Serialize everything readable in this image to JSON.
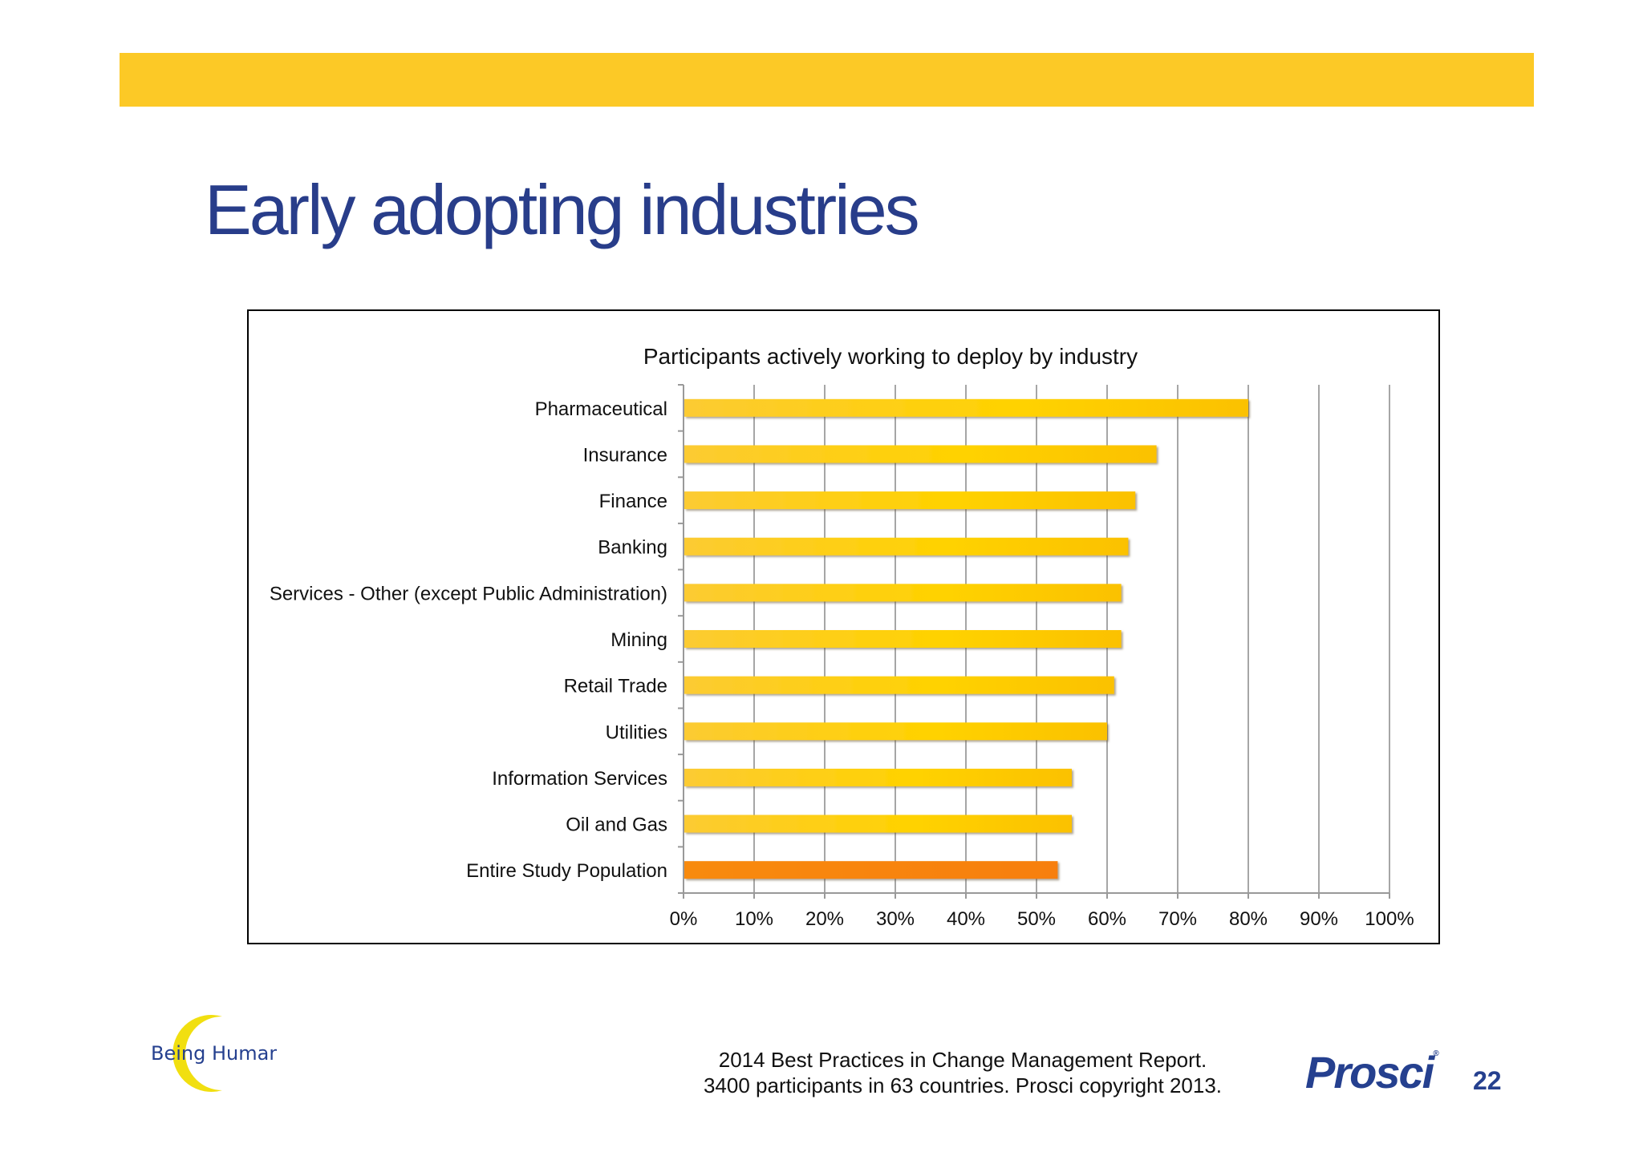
{
  "slide": {
    "title": "Early adopting industries",
    "colors": {
      "accent_bar": "#fcc926",
      "title": "#283d8a",
      "logo_text": "#25408f"
    }
  },
  "footer": {
    "source_line1": "2014 Best Practices in Change Management Report.",
    "source_line2": "3400 participants in 63 countries.  Prosci copyright 2013.",
    "page_number": "22"
  },
  "logos": {
    "left": "Being Human",
    "right": "Prosci"
  },
  "chart_data": {
    "type": "bar",
    "orientation": "horizontal",
    "title": "Participants actively working to deploy by industry",
    "xlabel": "",
    "ylabel": "",
    "categories": [
      "Pharmaceutical",
      "Insurance",
      "Finance",
      "Banking",
      "Services - Other (except Public Administration)",
      "Mining",
      "Retail Trade",
      "Utilities",
      "Information Services",
      "Oil and Gas",
      "Entire Study Population"
    ],
    "values": [
      80,
      67,
      64,
      63,
      62,
      62,
      61,
      60,
      55,
      55,
      53
    ],
    "unit": "%",
    "xlim": [
      0,
      100
    ],
    "xticks": [
      0,
      10,
      20,
      30,
      40,
      50,
      60,
      70,
      80,
      90,
      100
    ],
    "grid": "vertical",
    "legend": "none",
    "colors": {
      "bar": "#fdc92b",
      "highlight_bar": "#f7800a",
      "gridline": "#a6a6a6",
      "axis": "#999999"
    },
    "highlight_category": "Entire Study Population"
  }
}
